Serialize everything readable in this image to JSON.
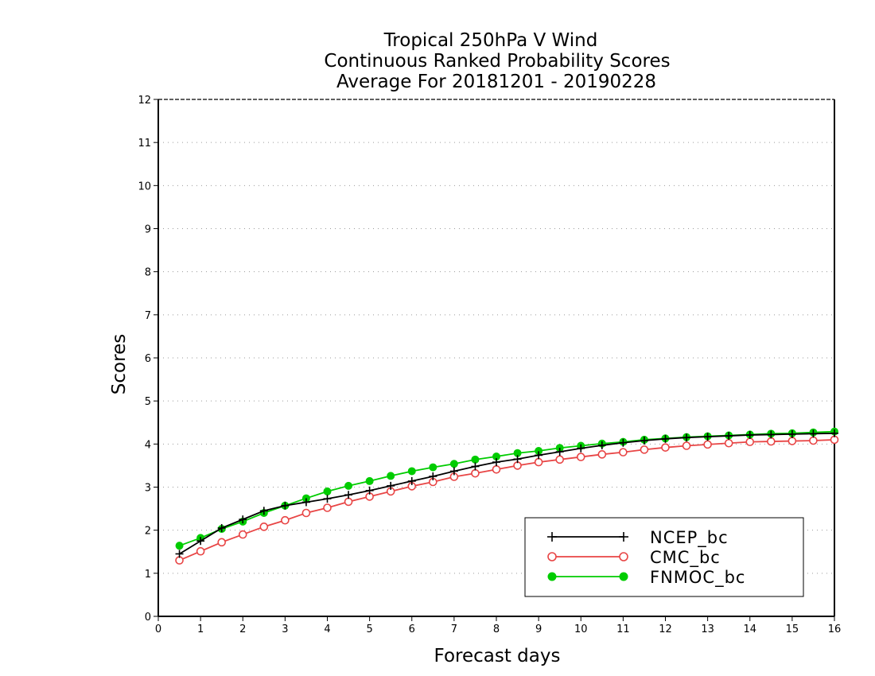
{
  "chart_data": {
    "type": "line",
    "title_lines": [
      "Tropical 250hPa V Wind",
      "Continuous Ranked Probability Scores",
      "Average For 20181201 - 20190228"
    ],
    "xlabel": "Forecast days",
    "ylabel": "Scores",
    "xlim": [
      0,
      16
    ],
    "ylim": [
      0,
      12
    ],
    "xticks": [
      0,
      1,
      2,
      3,
      4,
      5,
      6,
      7,
      8,
      9,
      10,
      11,
      12,
      13,
      14,
      15,
      16
    ],
    "yticks": [
      0,
      1,
      2,
      3,
      4,
      5,
      6,
      7,
      8,
      9,
      10,
      11,
      12
    ],
    "grid": "horizontal-dotted",
    "legend_position": "bottom-right",
    "x": [
      0.5,
      1,
      1.5,
      2,
      2.5,
      3,
      3.5,
      4,
      4.5,
      5,
      5.5,
      6,
      6.5,
      7,
      7.5,
      8,
      8.5,
      9,
      9.5,
      10,
      10.5,
      11,
      11.5,
      12,
      12.5,
      13,
      13.5,
      14,
      14.5,
      15,
      15.5,
      16
    ],
    "series": [
      {
        "name": "NCEP_bc",
        "color": "#000000",
        "marker": "plus",
        "values": [
          1.45,
          1.75,
          2.05,
          2.25,
          2.45,
          2.57,
          2.65,
          2.73,
          2.82,
          2.92,
          3.03,
          3.14,
          3.25,
          3.37,
          3.48,
          3.58,
          3.65,
          3.74,
          3.82,
          3.9,
          3.97,
          4.03,
          4.08,
          4.12,
          4.15,
          4.17,
          4.19,
          4.21,
          4.22,
          4.23,
          4.24,
          4.25
        ]
      },
      {
        "name": "CMC_bc",
        "color": "#e84545",
        "marker": "open-circle",
        "values": [
          1.3,
          1.51,
          1.72,
          1.9,
          2.08,
          2.23,
          2.4,
          2.52,
          2.66,
          2.78,
          2.9,
          3.02,
          3.12,
          3.24,
          3.32,
          3.41,
          3.5,
          3.58,
          3.64,
          3.7,
          3.76,
          3.81,
          3.87,
          3.92,
          3.96,
          3.99,
          4.02,
          4.05,
          4.06,
          4.07,
          4.08,
          4.1
        ]
      },
      {
        "name": "FNMOC_bc",
        "color": "#00cc00",
        "marker": "filled-circle",
        "values": [
          1.64,
          1.82,
          2.03,
          2.2,
          2.4,
          2.57,
          2.74,
          2.9,
          3.03,
          3.14,
          3.26,
          3.37,
          3.46,
          3.54,
          3.64,
          3.71,
          3.79,
          3.84,
          3.91,
          3.96,
          4.01,
          4.05,
          4.1,
          4.13,
          4.16,
          4.18,
          4.2,
          4.22,
          4.24,
          4.25,
          4.27,
          4.29
        ]
      }
    ]
  }
}
